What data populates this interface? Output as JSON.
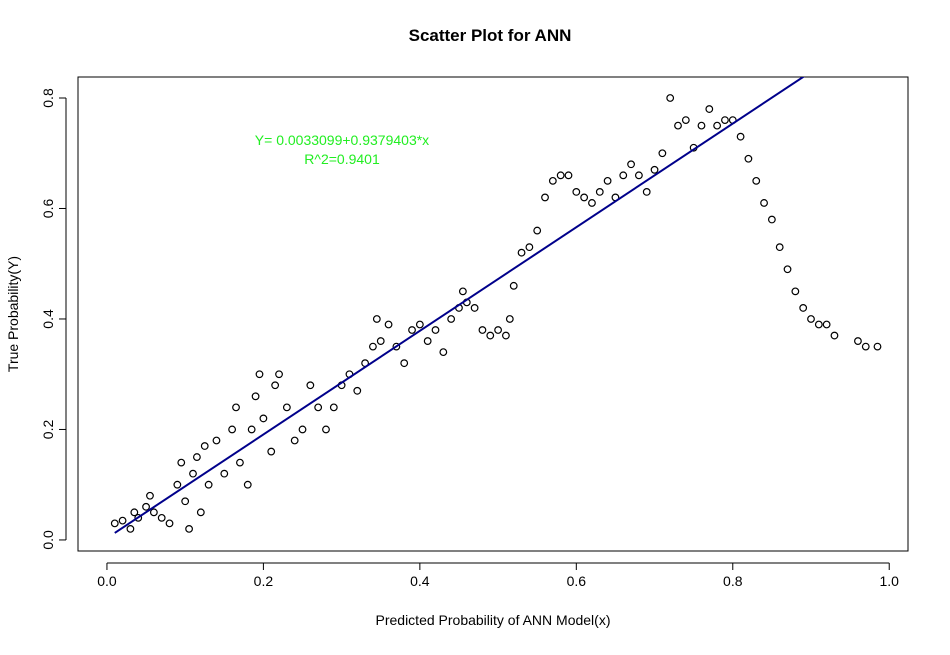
{
  "chart_data": {
    "type": "scatter",
    "title": "Scatter Plot for ANN",
    "x_label": "Predicted Probability of ANN Model(x)",
    "y_label": "True Probability(Y)",
    "annotations": [
      "Y= 0.0033099+0.9379403*x",
      "R^2=0.9401"
    ],
    "fit": {
      "intercept": 0.0033099,
      "slope": 0.9379403,
      "color": "#00008b"
    },
    "point_color": "#000000",
    "annotation_color": "#22ee22",
    "xlim": [
      -0.037,
      1.024
    ],
    "ylim": [
      -0.02,
      0.838
    ],
    "xticks": [
      {
        "value": 0,
        "label": "0.0"
      },
      0.2,
      0.4,
      0.6,
      0.8,
      {
        "value": 1,
        "label": "1.0"
      }
    ],
    "yticks": [
      {
        "value": 0,
        "label": "0.0"
      },
      0.2,
      0.4,
      0.6,
      0.8
    ],
    "x": [
      0.01,
      0.02,
      0.03,
      0.035,
      0.04,
      0.05,
      0.055,
      0.06,
      0.07,
      0.08,
      0.09,
      0.095,
      0.1,
      0.105,
      0.11,
      0.115,
      0.12,
      0.125,
      0.13,
      0.14,
      0.15,
      0.16,
      0.165,
      0.17,
      0.18,
      0.185,
      0.19,
      0.195,
      0.2,
      0.21,
      0.215,
      0.22,
      0.23,
      0.24,
      0.25,
      0.26,
      0.27,
      0.28,
      0.29,
      0.3,
      0.31,
      0.32,
      0.33,
      0.34,
      0.345,
      0.35,
      0.36,
      0.37,
      0.38,
      0.39,
      0.4,
      0.41,
      0.42,
      0.43,
      0.44,
      0.45,
      0.455,
      0.46,
      0.47,
      0.48,
      0.49,
      0.5,
      0.51,
      0.515,
      0.52,
      0.53,
      0.54,
      0.55,
      0.56,
      0.57,
      0.58,
      0.59,
      0.6,
      0.61,
      0.62,
      0.63,
      0.64,
      0.65,
      0.66,
      0.67,
      0.68,
      0.69,
      0.7,
      0.71,
      0.72,
      0.73,
      0.74,
      0.75,
      0.76,
      0.77,
      0.78,
      0.79,
      0.8,
      0.81,
      0.82,
      0.83,
      0.84,
      0.85,
      0.86,
      0.87,
      0.88,
      0.89,
      0.9,
      0.91,
      0.92,
      0.93,
      0.96,
      0.97,
      0.985
    ],
    "y": [
      0.03,
      0.035,
      0.02,
      0.05,
      0.04,
      0.06,
      0.08,
      0.05,
      0.04,
      0.03,
      0.1,
      0.14,
      0.07,
      0.02,
      0.12,
      0.15,
      0.05,
      0.17,
      0.1,
      0.18,
      0.12,
      0.2,
      0.24,
      0.14,
      0.1,
      0.2,
      0.26,
      0.3,
      0.22,
      0.16,
      0.28,
      0.3,
      0.24,
      0.18,
      0.2,
      0.28,
      0.24,
      0.2,
      0.24,
      0.28,
      0.3,
      0.27,
      0.32,
      0.35,
      0.4,
      0.36,
      0.39,
      0.35,
      0.32,
      0.38,
      0.39,
      0.36,
      0.38,
      0.34,
      0.4,
      0.42,
      0.45,
      0.43,
      0.42,
      0.38,
      0.37,
      0.38,
      0.37,
      0.4,
      0.46,
      0.52,
      0.53,
      0.56,
      0.62,
      0.65,
      0.66,
      0.66,
      0.63,
      0.62,
      0.61,
      0.63,
      0.65,
      0.62,
      0.66,
      0.68,
      0.66,
      0.63,
      0.67,
      0.7,
      0.8,
      0.75,
      0.76,
      0.71,
      0.75,
      0.78,
      0.75,
      0.76,
      0.76,
      0.73,
      0.69,
      0.65,
      0.61,
      0.58,
      0.53,
      0.49,
      0.45,
      0.42,
      0.4,
      0.39,
      0.39,
      0.37,
      0.36,
      0.35,
      0.35
    ]
  }
}
